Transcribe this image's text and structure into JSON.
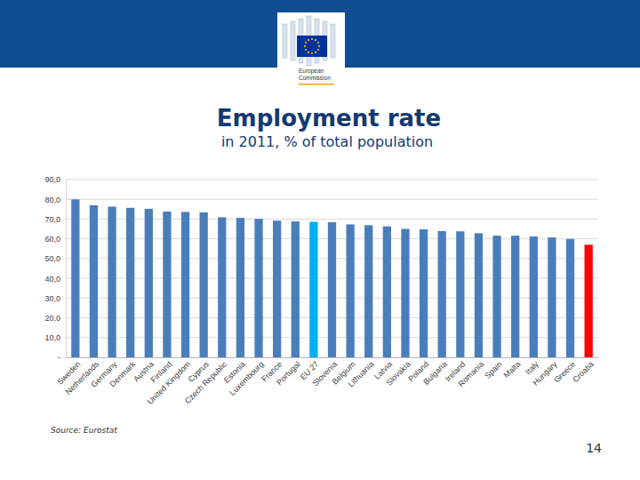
{
  "slide": {
    "logo_text": [
      "European",
      "Commission"
    ],
    "source": "Source: Eurostat",
    "page_number": "14"
  },
  "chart_data": {
    "type": "bar",
    "title": "Employment rate",
    "subtitle": "in 2011, % of total population",
    "categories": [
      "Sweden",
      "Netherlands",
      "Germany",
      "Denmark",
      "Austria",
      "Finland",
      "United Kingdom",
      "Cyprus",
      "Czech Republic",
      "Estonia",
      "Luxembourg",
      "France",
      "Portugal",
      "EU 27",
      "Slovenia",
      "Belgium",
      "Lithuania",
      "Latvia",
      "Slovakia",
      "Poland",
      "Bulgaria",
      "Ireland",
      "Romania",
      "Spain",
      "Malta",
      "Italy",
      "Hungary",
      "Greece",
      "Croatia"
    ],
    "values": [
      80.0,
      77.0,
      76.3,
      75.7,
      75.2,
      73.8,
      73.6,
      73.4,
      70.9,
      70.6,
      70.1,
      69.2,
      68.8,
      68.6,
      68.4,
      67.3,
      66.9,
      66.3,
      65.0,
      64.8,
      63.9,
      63.8,
      62.8,
      61.6,
      61.6,
      61.2,
      60.7,
      59.9,
      57.0
    ],
    "colors": [
      "#4a7ebb",
      "#4a7ebb",
      "#4a7ebb",
      "#4a7ebb",
      "#4a7ebb",
      "#4a7ebb",
      "#4a7ebb",
      "#4a7ebb",
      "#4a7ebb",
      "#4a7ebb",
      "#4a7ebb",
      "#4a7ebb",
      "#4a7ebb",
      "#00b0f0",
      "#4a7ebb",
      "#4a7ebb",
      "#4a7ebb",
      "#4a7ebb",
      "#4a7ebb",
      "#4a7ebb",
      "#4a7ebb",
      "#4a7ebb",
      "#4a7ebb",
      "#4a7ebb",
      "#4a7ebb",
      "#4a7ebb",
      "#4a7ebb",
      "#4a7ebb",
      "#ff0000"
    ],
    "ylim": [
      0,
      90
    ],
    "yticks": [
      {
        "value": 0,
        "label": "-"
      },
      {
        "value": 10,
        "label": "10,0"
      },
      {
        "value": 20,
        "label": "20,0"
      },
      {
        "value": 30,
        "label": "30,0"
      },
      {
        "value": 40,
        "label": "40,0"
      },
      {
        "value": 50,
        "label": "50,0"
      },
      {
        "value": 60,
        "label": "60,0"
      },
      {
        "value": 70,
        "label": "70,0"
      },
      {
        "value": 80,
        "label": "80,0"
      },
      {
        "value": 90,
        "label": "90,0"
      }
    ],
    "grid": true
  }
}
